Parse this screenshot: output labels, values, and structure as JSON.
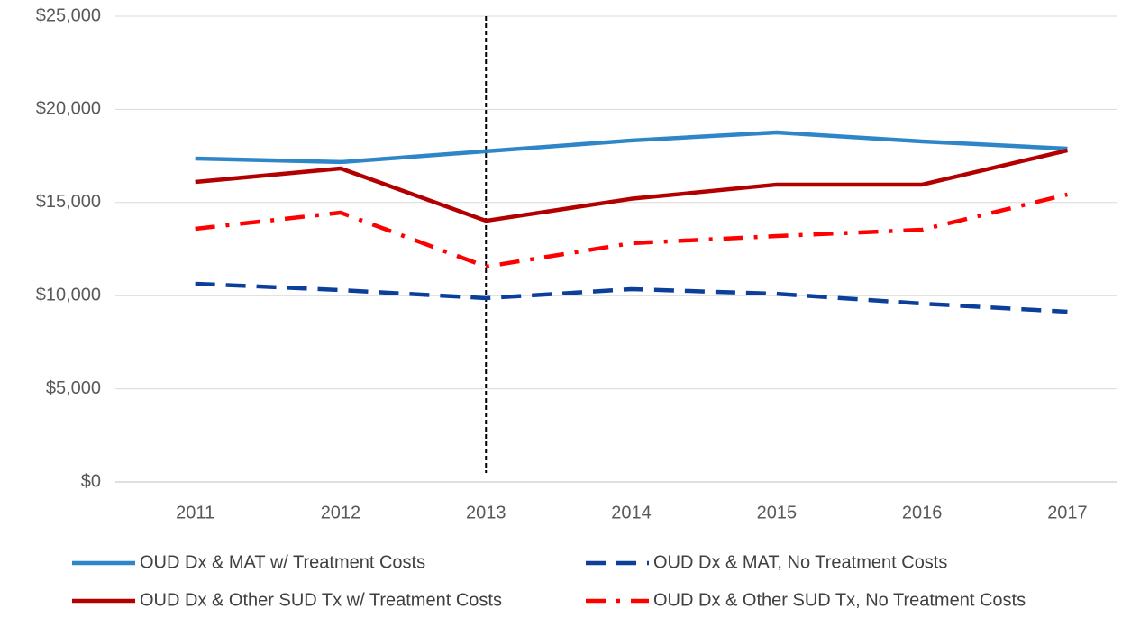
{
  "chart_data": {
    "type": "line",
    "categories": [
      "2011",
      "2012",
      "2013",
      "2014",
      "2015",
      "2016",
      "2017"
    ],
    "series": [
      {
        "name": "OUD Dx & MAT w/ Treatment Costs",
        "color": "#2e86c8",
        "dash": "solid",
        "values": [
          17360,
          17170,
          17750,
          18330,
          18760,
          18280,
          17890
        ]
      },
      {
        "name": "OUD Dx & MAT, No Treatment Costs",
        "color": "#0b3f9a",
        "dash": "dash",
        "values": [
          10640,
          10300,
          9865,
          10350,
          10100,
          9575,
          9140
        ]
      },
      {
        "name": "OUD Dx & Other SUD Tx w/ Treatment Costs",
        "color": "#b20000",
        "dash": "solid",
        "values": [
          16100,
          16830,
          14020,
          15200,
          15960,
          15960,
          17800
        ]
      },
      {
        "name": "OUD Dx & Other SUD Tx, No Treatment Costs",
        "color": "#ff0000",
        "dash": "dashdot",
        "values": [
          13590,
          14460,
          11560,
          12815,
          13200,
          13540,
          15430
        ]
      }
    ],
    "ylim": [
      0,
      25000
    ],
    "yticks": [
      {
        "value": 0,
        "label": "$0"
      },
      {
        "value": 5000,
        "label": "$5,000"
      },
      {
        "value": 10000,
        "label": "$10,000"
      },
      {
        "value": 15000,
        "label": "$15,000"
      },
      {
        "value": 20000,
        "label": "$20,000"
      },
      {
        "value": 25000,
        "label": "$25,000"
      }
    ],
    "grid": true,
    "legend": "bottom"
  }
}
